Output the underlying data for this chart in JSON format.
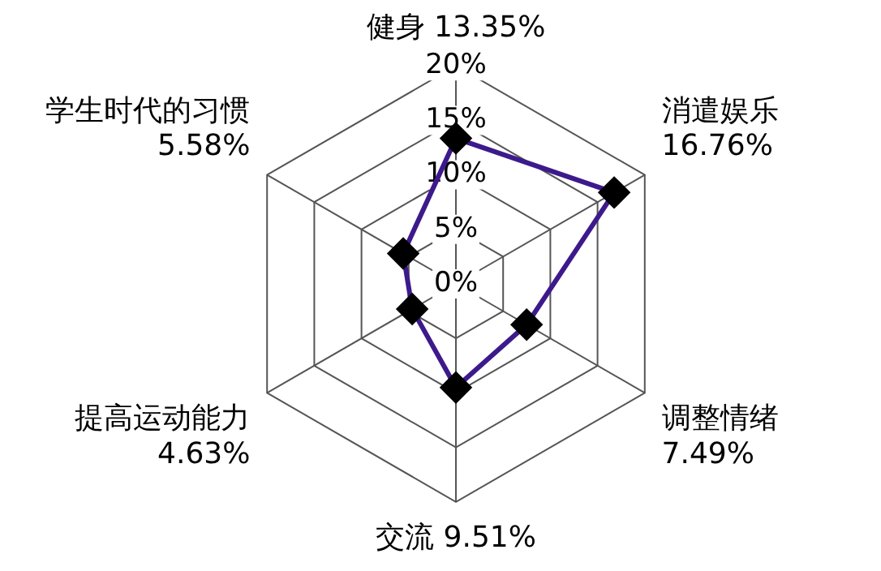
{
  "chart_data": {
    "type": "radar",
    "categories": [
      "健身 13.35%",
      "消遣娱乐 16.76%",
      "调整情绪 7.49%",
      "交流 9.51%",
      "提高运动能力 4.63%",
      "学生时代的习惯 5.58%"
    ],
    "series": [
      {
        "color": "#3d1a8c",
        "values": [
          13.35,
          16.76,
          7.49,
          9.51,
          4.63,
          5.58
        ]
      }
    ],
    "ylim": [
      0,
      20
    ],
    "yticks": [
      {
        "value": 0,
        "label": "0%"
      },
      {
        "value": 5,
        "label": "5%"
      },
      {
        "value": 10,
        "label": "10%"
      },
      {
        "value": 15,
        "label": "15%"
      },
      {
        "value": 20,
        "label": "20%"
      }
    ],
    "grid": true,
    "legend": false,
    "marker": "diamond",
    "line_style": "solid"
  }
}
